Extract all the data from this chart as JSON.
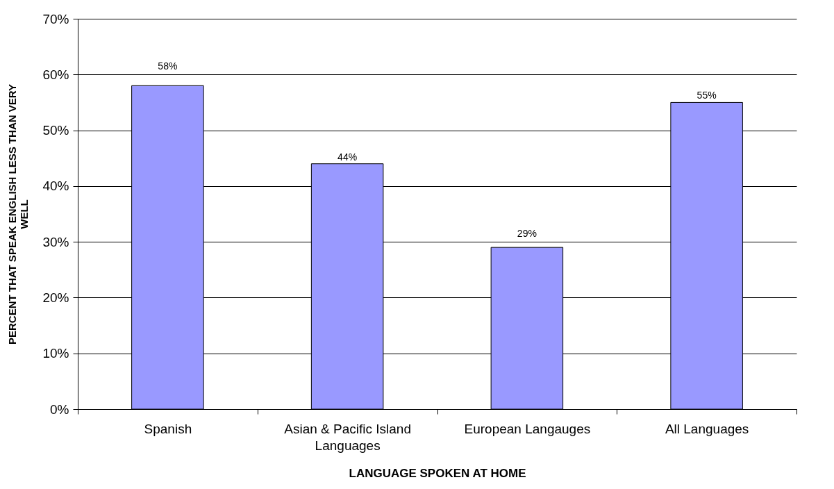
{
  "chart_data": {
    "type": "bar",
    "xlabel": "LANGUAGE SPOKEN AT HOME",
    "ylabel": "PERCENT THAT SPEAK ENGLISH LESS THAN VERY WELL",
    "categories": [
      "Spanish",
      "Asian & Pacific Island Languages",
      "European Langauges",
      "All Languages"
    ],
    "values": [
      58,
      44,
      29,
      55
    ],
    "value_labels": [
      "58%",
      "44%",
      "29%",
      "55%"
    ],
    "color": "#9999ff",
    "ylim": [
      0,
      70
    ],
    "yticks": [
      {
        "value": 0,
        "label": "0%"
      },
      {
        "value": 10,
        "label": "10%"
      },
      {
        "value": 20,
        "label": "20%"
      },
      {
        "value": 30,
        "label": "30%"
      },
      {
        "value": 40,
        "label": "40%"
      },
      {
        "value": 50,
        "label": "50%"
      },
      {
        "value": 60,
        "label": "60%"
      },
      {
        "value": 70,
        "label": "70%"
      }
    ],
    "grid": "y"
  }
}
